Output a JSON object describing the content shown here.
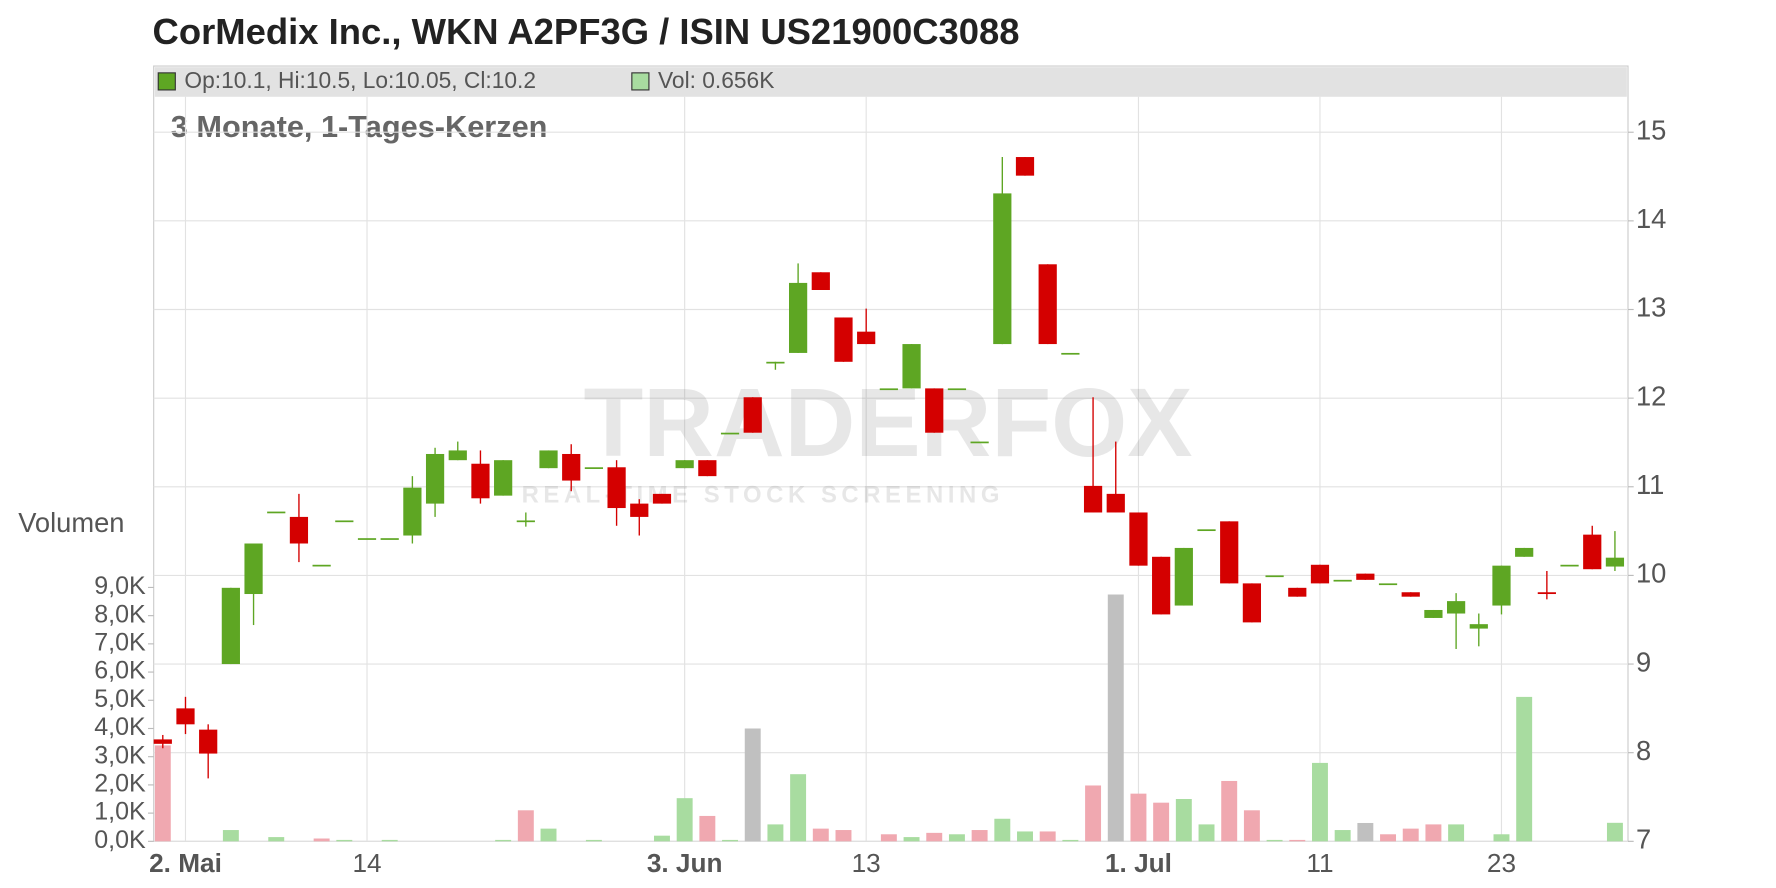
{
  "chart_data": {
    "type": "candlestick",
    "title": "CorMedix Inc., WKN A2PF3G / ISIN US21900C3088",
    "subtitle": "3 Monate, 1-Tages-Kerzen",
    "watermark": [
      "TRADERFOX",
      "REAL-TIME STOCK SCREENING"
    ],
    "legend": [
      {
        "label": "Op:10.1, Hi:10.5, Lo:10.05, Cl:10.2",
        "color": "#5ea623"
      },
      {
        "label": "Vol: 0.656K",
        "color": "#a8dca0"
      }
    ],
    "categories": [
      null,
      "2. Mai",
      null,
      null,
      null,
      null,
      null,
      null,
      null,
      "14",
      null,
      null,
      null,
      null,
      null,
      null,
      null,
      null,
      null,
      null,
      null,
      null,
      null,
      "3. Jun",
      null,
      null,
      null,
      null,
      null,
      null,
      null,
      "13",
      null,
      null,
      null,
      null,
      null,
      null,
      null,
      null,
      null,
      null,
      null,
      "1. Jul",
      null,
      null,
      null,
      null,
      null,
      null,
      null,
      "11",
      null,
      null,
      null,
      null,
      null,
      null,
      null,
      "23",
      null,
      null,
      null,
      null,
      null
    ],
    "up_color": "#5ea623",
    "down_color": "#d40000",
    "open": [
      8.15,
      8.5,
      8.26,
      9.0,
      9.79,
      10.72,
      10.66,
      10.12,
      10.62,
      10.42,
      10.42,
      10.45,
      10.81,
      11.3,
      11.26,
      10.9,
      10.62,
      11.21,
      11.37,
      11.22,
      11.22,
      10.81,
      10.92,
      11.21,
      11.3,
      11.61,
      12.01,
      12.41,
      12.51,
      13.42,
      12.91,
      12.75,
      12.11,
      12.11,
      12.11,
      12.11,
      11.51,
      12.61,
      14.72,
      13.51,
      12.51,
      11.01,
      10.92,
      10.71,
      10.21,
      9.66,
      10.52,
      10.61,
      9.91,
      10.0,
      9.86,
      10.12,
      9.95,
      10.02,
      9.91,
      9.81,
      9.52,
      9.57,
      9.4,
      9.66,
      10.21,
      9.81,
      10.12,
      10.46,
      10.1
    ],
    "high": [
      8.2,
      8.63,
      8.32,
      9.86,
      10.36,
      10.72,
      10.92,
      10.12,
      10.62,
      10.42,
      10.42,
      11.12,
      11.44,
      11.51,
      11.41,
      11.3,
      10.71,
      11.41,
      11.48,
      11.22,
      11.3,
      10.86,
      10.92,
      11.3,
      11.3,
      11.61,
      12.01,
      12.41,
      13.52,
      13.42,
      12.91,
      13.01,
      12.11,
      12.61,
      12.11,
      12.11,
      11.51,
      14.72,
      14.72,
      13.51,
      12.51,
      12.01,
      11.51,
      10.71,
      10.21,
      10.31,
      10.52,
      10.61,
      9.91,
      10.0,
      9.86,
      10.12,
      9.95,
      10.02,
      9.91,
      9.81,
      9.61,
      9.8,
      9.57,
      10.11,
      10.31,
      10.05,
      10.12,
      10.56,
      10.5
    ],
    "low": [
      8.05,
      8.21,
      7.71,
      9.0,
      9.44,
      10.72,
      10.15,
      10.12,
      10.62,
      10.42,
      10.42,
      10.36,
      10.66,
      11.3,
      10.81,
      10.9,
      10.55,
      11.21,
      10.95,
      11.22,
      10.56,
      10.45,
      10.81,
      11.21,
      11.12,
      11.61,
      11.61,
      12.32,
      12.51,
      13.22,
      12.41,
      12.61,
      12.11,
      12.11,
      11.61,
      12.11,
      11.51,
      12.61,
      14.51,
      12.61,
      12.51,
      10.71,
      10.71,
      10.11,
      9.56,
      9.66,
      10.52,
      9.91,
      9.47,
      10.0,
      9.76,
      9.91,
      9.95,
      9.95,
      9.91,
      9.76,
      9.52,
      9.17,
      9.2,
      9.56,
      10.21,
      9.73,
      10.12,
      10.07,
      10.05
    ],
    "close": [
      8.1,
      8.32,
      7.99,
      9.86,
      10.36,
      10.72,
      10.36,
      10.12,
      10.62,
      10.42,
      10.42,
      10.99,
      11.37,
      11.41,
      10.87,
      11.3,
      10.62,
      11.41,
      11.07,
      11.22,
      10.76,
      10.66,
      10.81,
      11.3,
      11.12,
      11.61,
      11.61,
      12.41,
      13.3,
      13.22,
      12.41,
      12.61,
      12.11,
      12.61,
      11.61,
      12.11,
      11.51,
      14.31,
      14.51,
      12.61,
      12.51,
      10.71,
      10.71,
      10.11,
      9.56,
      10.31,
      10.52,
      9.91,
      9.47,
      10.0,
      9.76,
      9.91,
      9.95,
      9.95,
      9.91,
      9.76,
      9.61,
      9.71,
      9.45,
      10.11,
      10.31,
      9.79,
      10.12,
      10.07,
      10.2
    ],
    "ylim": [
      7,
      15.4
    ],
    "yticks": [
      7,
      8,
      9,
      10,
      11,
      12,
      13,
      14,
      15
    ],
    "grid": true,
    "volume": {
      "name": "Volumen",
      "axis": "y2",
      "values": [
        3400,
        0,
        0,
        400,
        0,
        150,
        0,
        100,
        50,
        0,
        50,
        0,
        0,
        0,
        0,
        50,
        1100,
        450,
        0,
        50,
        0,
        0,
        200,
        1530,
        900,
        50,
        4000,
        600,
        2380,
        450,
        400,
        0,
        250,
        150,
        300,
        250,
        400,
        800,
        350,
        350,
        50,
        1980,
        8750,
        1690,
        1370,
        1500,
        600,
        2140,
        1100,
        50,
        50,
        2780,
        400,
        650,
        250,
        450,
        600,
        600,
        0,
        250,
        5120,
        0,
        0,
        0,
        656
      ],
      "colors": [
        "#f0a8b0",
        "#f0a8b0",
        "#f0a8b0",
        "#a8dca0",
        "#a8dca0",
        "#a8dca0",
        "#f0a8b0",
        "#f0a8b0",
        "#a8dca0",
        "#a8dca0",
        "#a8dca0",
        "#a8dca0",
        "#a8dca0",
        "#a8dca0",
        "#f0a8b0",
        "#a8dca0",
        "#f0a8b0",
        "#a8dca0",
        "#f0a8b0",
        "#a8dca0",
        "#f0a8b0",
        "#f0a8b0",
        "#a8dca0",
        "#a8dca0",
        "#f0a8b0",
        "#a8dca0",
        "#c0c0c0",
        "#a8dca0",
        "#a8dca0",
        "#f0a8b0",
        "#f0a8b0",
        "#f0a8b0",
        "#f0a8b0",
        "#a8dca0",
        "#f0a8b0",
        "#a8dca0",
        "#f0a8b0",
        "#a8dca0",
        "#a8dca0",
        "#f0a8b0",
        "#a8dca0",
        "#f0a8b0",
        "#c0c0c0",
        "#f0a8b0",
        "#f0a8b0",
        "#a8dca0",
        "#a8dca0",
        "#f0a8b0",
        "#f0a8b0",
        "#a8dca0",
        "#f0a8b0",
        "#a8dca0",
        "#a8dca0",
        "#c0c0c0",
        "#f0a8b0",
        "#f0a8b0",
        "#f0a8b0",
        "#a8dca0",
        "#a8dca0",
        "#a8dca0",
        "#a8dca0",
        "#f0a8b0",
        "#a8dca0",
        "#f0a8b0",
        "#a8dca0"
      ]
    },
    "y2lim": [
      0,
      9000
    ],
    "y2ticks": [
      {
        "value": 0,
        "label": "0,0K"
      },
      {
        "value": 1000,
        "label": "1,0K"
      },
      {
        "value": 2000,
        "label": "2,0K"
      },
      {
        "value": 3000,
        "label": "3,0K"
      },
      {
        "value": 4000,
        "label": "4,0K"
      },
      {
        "value": 5000,
        "label": "5,0K"
      },
      {
        "value": 6000,
        "label": "6,0K"
      },
      {
        "value": 7000,
        "label": "7,0K"
      },
      {
        "value": 8000,
        "label": "8,0K"
      },
      {
        "value": 9000,
        "label": "9,0K"
      }
    ]
  }
}
